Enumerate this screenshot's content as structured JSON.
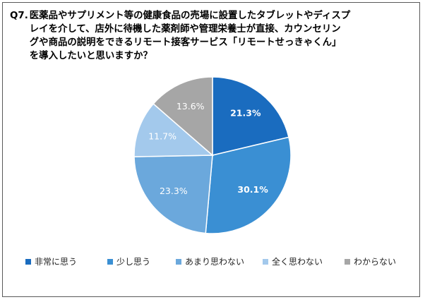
{
  "question": {
    "label": "Q7.",
    "lines": [
      "医薬品やサプリメント等の健康食品の売場に設置したタブレットやディスプ",
      "レイを介して、店外に待機した薬剤師や管理栄養士が直接、カウンセリン",
      "グや商品の説明をできるリモート接客サービス「リモートせっきゃくん」",
      "を導入したいと思いますか？"
    ]
  },
  "chart_data": {
    "type": "pie",
    "title": "",
    "categories": [
      "非常に思う",
      "少し思う",
      "あまり思わない",
      "全く思わない",
      "わからない"
    ],
    "values": [
      21.3,
      30.1,
      23.3,
      11.7,
      13.6
    ],
    "value_labels": [
      "21.3%",
      "30.1%",
      "23.3%",
      "11.7%",
      "13.6%"
    ],
    "colors": [
      "#1a6cbf",
      "#3a8fd3",
      "#6ba8dc",
      "#a3c9ec",
      "#a6a6a6"
    ],
    "label_colors": [
      "#ffffff",
      "#ffffff",
      "#ffffff",
      "#ffffff",
      "#ffffff"
    ],
    "start_angle_deg": 0,
    "direction": "clockwise",
    "legend_position": "bottom"
  }
}
